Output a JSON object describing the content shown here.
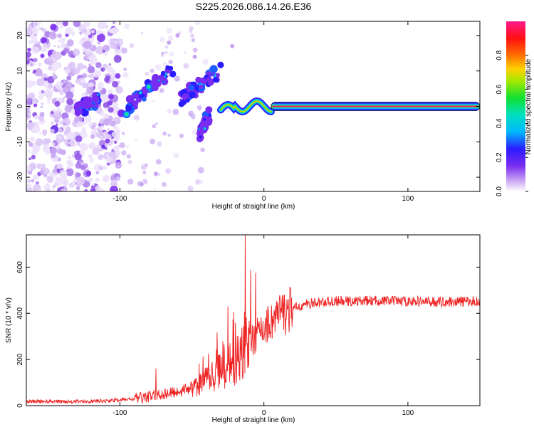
{
  "title": "S225.2026.086.14.26.E36",
  "chart_data": [
    {
      "type": "heatmap",
      "xlabel": "Height of straight line (km)",
      "ylabel": "Frequency (Hz)",
      "xlim": [
        -165,
        150
      ],
      "ylim": [
        -24,
        24
      ],
      "xticks": [
        -100,
        0,
        100
      ],
      "yticks": [
        -20,
        -10,
        0,
        10,
        20
      ],
      "colorbar": {
        "label": "Normalized spectral amplitude",
        "range": [
          0,
          1
        ],
        "ticks": [
          "0.0",
          "0.2",
          "0.4",
          "0.6",
          "0.8"
        ]
      },
      "features": [
        {
          "segment": "noise",
          "x_range": [
            -165,
            -100
          ],
          "freq_range": [
            -24,
            24
          ],
          "amplitude": 0.1
        },
        {
          "segment": "scattered-echoes",
          "x_range": [
            -100,
            -30
          ],
          "freq_range": [
            -10,
            12
          ],
          "amplitude": 0.3
        },
        {
          "segment": "ridge",
          "x_range": [
            -30,
            150
          ],
          "freq": 0,
          "amplitude": 1.0
        }
      ]
    },
    {
      "type": "line",
      "xlabel": "Height of straight line (km)",
      "ylabel": "SNR (10 * v/v)",
      "xlim": [
        -165,
        150
      ],
      "ylim": [
        0,
        740
      ],
      "xticks": [
        -100,
        0,
        100
      ],
      "yticks": [
        0,
        200,
        400,
        600
      ],
      "series": [
        {
          "name": "SNR",
          "color": "#ee2222",
          "x": [
            -165,
            -150,
            -130,
            -110,
            -90,
            -75,
            -60,
            -50,
            -40,
            -30,
            -20,
            -15,
            -10,
            0,
            10,
            20,
            30,
            40,
            50,
            60,
            80,
            100,
            120,
            150
          ],
          "y": [
            18,
            18,
            18,
            20,
            30,
            45,
            60,
            80,
            110,
            150,
            190,
            230,
            270,
            340,
            390,
            420,
            440,
            448,
            452,
            452,
            455,
            452,
            450,
            452
          ],
          "spikes": [
            {
              "x": -13,
              "y": 740
            },
            {
              "x": -75,
              "y": 160
            },
            {
              "x": -25,
              "y": 430
            }
          ]
        }
      ]
    }
  ]
}
